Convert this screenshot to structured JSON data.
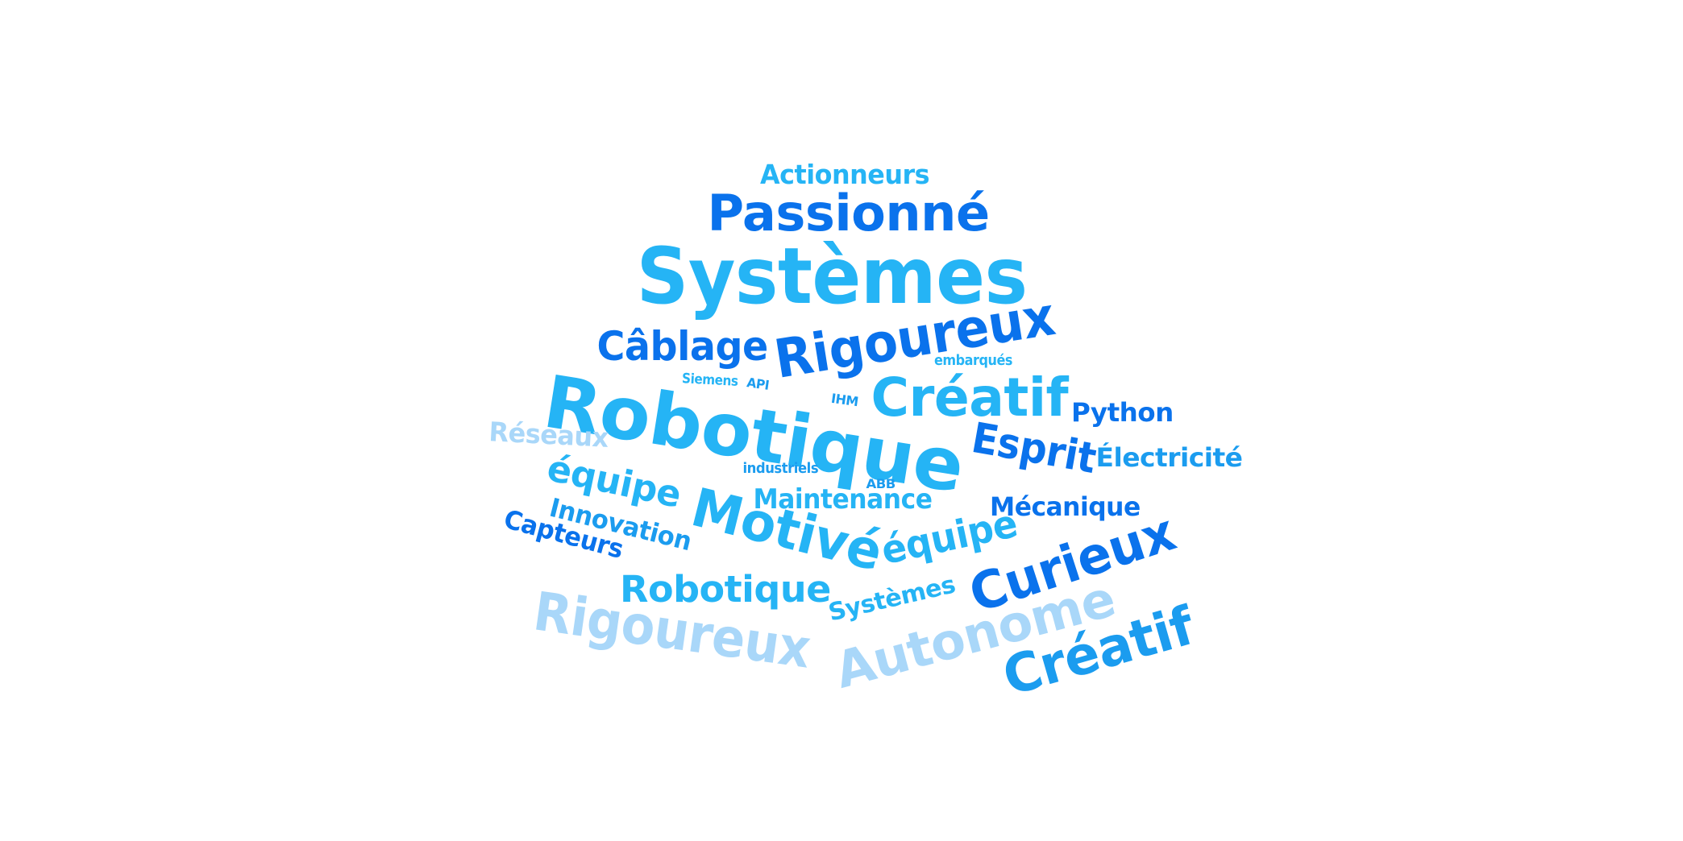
{
  "word_cloud": {
    "colors": {
      "dark_blue": "#0a72ec",
      "medium_blue": "#1b9cef",
      "light_blue": "#25b4f5",
      "pale_blue": "#a9d7f9"
    },
    "words": [
      {
        "id": "actionneurs",
        "text": "Actionneurs",
        "color": "#25b4f5"
      },
      {
        "id": "passionne",
        "text": "Passionné",
        "color": "#0a72ec"
      },
      {
        "id": "systemes-large",
        "text": "Systèmes",
        "color": "#25b4f5"
      },
      {
        "id": "cablage",
        "text": "Câblage",
        "color": "#0a72ec"
      },
      {
        "id": "rigoureux-top",
        "text": "Rigoureux",
        "color": "#0a72ec"
      },
      {
        "id": "embarques",
        "text": "embarqués",
        "color": "#25b4f5"
      },
      {
        "id": "robotique-large",
        "text": "Robotique",
        "color": "#25b4f5"
      },
      {
        "id": "siemens",
        "text": "Siemens",
        "color": "#25b4f5"
      },
      {
        "id": "api",
        "text": "API",
        "color": "#1b9cef"
      },
      {
        "id": "ihm",
        "text": "IHM",
        "color": "#1b9cef"
      },
      {
        "id": "creatif-top",
        "text": "Créatif",
        "color": "#25b4f5"
      },
      {
        "id": "python",
        "text": "Python",
        "color": "#0a72ec"
      },
      {
        "id": "reseaux",
        "text": "Réseaux",
        "color": "#a9d7f9"
      },
      {
        "id": "esprit",
        "text": "Esprit",
        "color": "#0a72ec"
      },
      {
        "id": "electricite",
        "text": "Électricité",
        "color": "#1b9cef"
      },
      {
        "id": "equipe-left",
        "text": "équipe",
        "color": "#25b4f5"
      },
      {
        "id": "industriels",
        "text": "industriels",
        "color": "#1b9cef"
      },
      {
        "id": "abb",
        "text": "ABB",
        "color": "#1b9cef"
      },
      {
        "id": "motive",
        "text": "Motivé",
        "color": "#25b4f5"
      },
      {
        "id": "maintenance",
        "text": "Maintenance",
        "color": "#25b4f5"
      },
      {
        "id": "mecanique",
        "text": "Mécanique",
        "color": "#0a72ec"
      },
      {
        "id": "innovation",
        "text": "Innovation",
        "color": "#1b9cef"
      },
      {
        "id": "capteurs",
        "text": "Capteurs",
        "color": "#0a72ec"
      },
      {
        "id": "equipe-right",
        "text": "équipe",
        "color": "#25b4f5"
      },
      {
        "id": "curieux",
        "text": "Curieux",
        "color": "#0a72ec"
      },
      {
        "id": "robotique-small",
        "text": "Robotique",
        "color": "#25b4f5"
      },
      {
        "id": "systemes-small",
        "text": "Systèmes",
        "color": "#25b4f5"
      },
      {
        "id": "rigoureux-bottom",
        "text": "Rigoureux",
        "color": "#a9d7f9"
      },
      {
        "id": "autonome",
        "text": "Autonome",
        "color": "#a9d7f9"
      },
      {
        "id": "creatif-bottom",
        "text": "Créatif",
        "color": "#1b9cef"
      }
    ]
  }
}
